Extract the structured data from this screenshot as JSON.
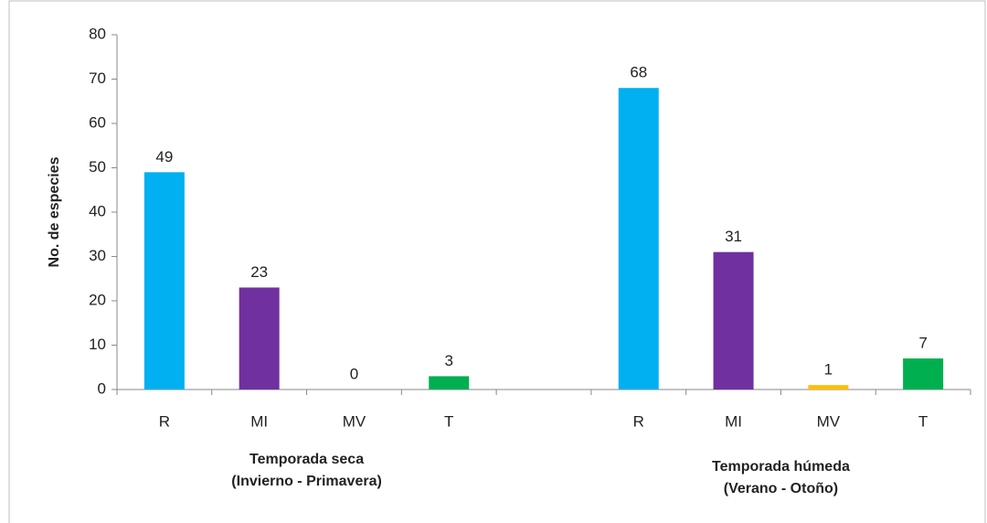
{
  "chart_data": {
    "type": "bar",
    "y_label": "No. de especies",
    "categories": [
      "R",
      "MI",
      "MV",
      "T",
      null,
      "R",
      "MI",
      "MV",
      "T"
    ],
    "values": [
      49,
      23,
      0,
      3,
      null,
      68,
      31,
      1,
      7
    ],
    "colors": [
      "#00b0f0",
      "#7030a0",
      "#ffc000",
      "#00b050",
      null,
      "#00b0f0",
      "#7030a0",
      "#ffc000",
      "#00b050"
    ],
    "groups": [
      {
        "label": [
          "Temporada seca",
          "(Invierno - Primavera)"
        ]
      },
      {
        "label": [
          "Temporada húmeda",
          "(Verano - Otoño)"
        ]
      }
    ],
    "ylim": [
      0,
      80
    ],
    "yticks": [
      0,
      10,
      20,
      30,
      40,
      50,
      60,
      70,
      80
    ],
    "grid": false
  }
}
